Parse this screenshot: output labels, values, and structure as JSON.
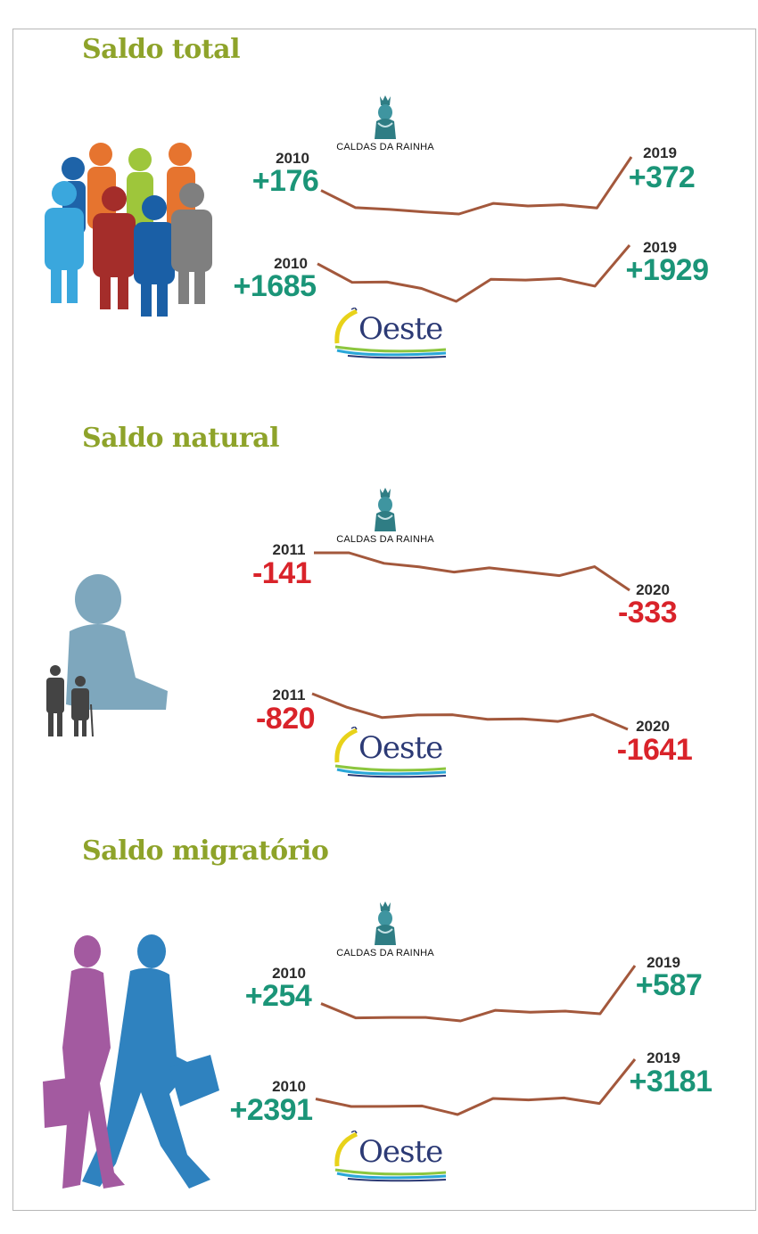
{
  "colors": {
    "title": "#8ea32a",
    "positive": "#1b9578",
    "negative": "#d9232a",
    "line": "#a3583c",
    "year": "#2b2b2b"
  },
  "logos": {
    "caldas": "CALDAS DA RAINHA",
    "oeste": "Oeste"
  },
  "sections": [
    {
      "title": "Saldo total",
      "charts": [
        {
          "region": "Caldas da Rainha",
          "start_year": "2010",
          "start_label": "+176",
          "end_year": "2019",
          "end_label": "+372"
        },
        {
          "region": "Oeste",
          "start_year": "2010",
          "start_label": "+1685",
          "end_year": "2019",
          "end_label": "+1929"
        }
      ]
    },
    {
      "title": "Saldo natural",
      "charts": [
        {
          "region": "Caldas da Rainha",
          "start_year": "2011",
          "start_label": "-141",
          "end_year": "2020",
          "end_label": "-333"
        },
        {
          "region": "Oeste",
          "start_year": "2011",
          "start_label": "-820",
          "end_year": "2020",
          "end_label": "-1641"
        }
      ]
    },
    {
      "title": "Saldo migratório",
      "charts": [
        {
          "region": "Caldas da Rainha",
          "start_year": "2010",
          "start_label": "+254",
          "end_year": "2019",
          "end_label": "+587"
        },
        {
          "region": "Oeste",
          "start_year": "2010",
          "start_label": "+2391",
          "end_year": "2019",
          "end_label": "+3181"
        }
      ]
    }
  ],
  "chart_data": [
    {
      "type": "line",
      "title": "Saldo total",
      "region": "Caldas da Rainha",
      "x": [
        "2010",
        "2011",
        "2012",
        "2013",
        "2014",
        "2015",
        "2016",
        "2017",
        "2018",
        "2019"
      ],
      "values": [
        176,
        75,
        65,
        50,
        38,
        100,
        85,
        92,
        73,
        372
      ]
    },
    {
      "type": "line",
      "title": "Saldo total",
      "region": "Oeste",
      "x": [
        "2010",
        "2011",
        "2012",
        "2013",
        "2014",
        "2015",
        "2016",
        "2017",
        "2018",
        "2019"
      ],
      "values": [
        1685,
        1440,
        1445,
        1360,
        1190,
        1480,
        1470,
        1490,
        1390,
        1929
      ]
    },
    {
      "type": "line",
      "title": "Saldo natural",
      "region": "Caldas da Rainha",
      "x": [
        "2011",
        "2012",
        "2013",
        "2014",
        "2015",
        "2016",
        "2017",
        "2018",
        "2019",
        "2020"
      ],
      "values": [
        -141,
        -141,
        -195,
        -213,
        -240,
        -218,
        -238,
        -258,
        -212,
        -333
      ]
    },
    {
      "type": "line",
      "title": "Saldo natural",
      "region": "Oeste",
      "x": [
        "2011",
        "2012",
        "2013",
        "2014",
        "2015",
        "2016",
        "2017",
        "2018",
        "2019",
        "2020"
      ],
      "values": [
        -820,
        -1135,
        -1370,
        -1310,
        -1305,
        -1410,
        -1400,
        -1460,
        -1300,
        -1641
      ]
    },
    {
      "type": "line",
      "title": "Saldo migratório",
      "region": "Caldas da Rainha",
      "x": [
        "2010",
        "2011",
        "2012",
        "2013",
        "2014",
        "2015",
        "2016",
        "2017",
        "2018",
        "2019"
      ],
      "values": [
        254,
        128,
        132,
        132,
        102,
        195,
        178,
        188,
        165,
        587
      ]
    },
    {
      "type": "line",
      "title": "Saldo migratório",
      "region": "Oeste",
      "x": [
        "2010",
        "2011",
        "2012",
        "2013",
        "2014",
        "2015",
        "2016",
        "2017",
        "2018",
        "2019"
      ],
      "values": [
        2391,
        2240,
        2242,
        2250,
        2080,
        2400,
        2370,
        2410,
        2300,
        3181
      ]
    }
  ]
}
